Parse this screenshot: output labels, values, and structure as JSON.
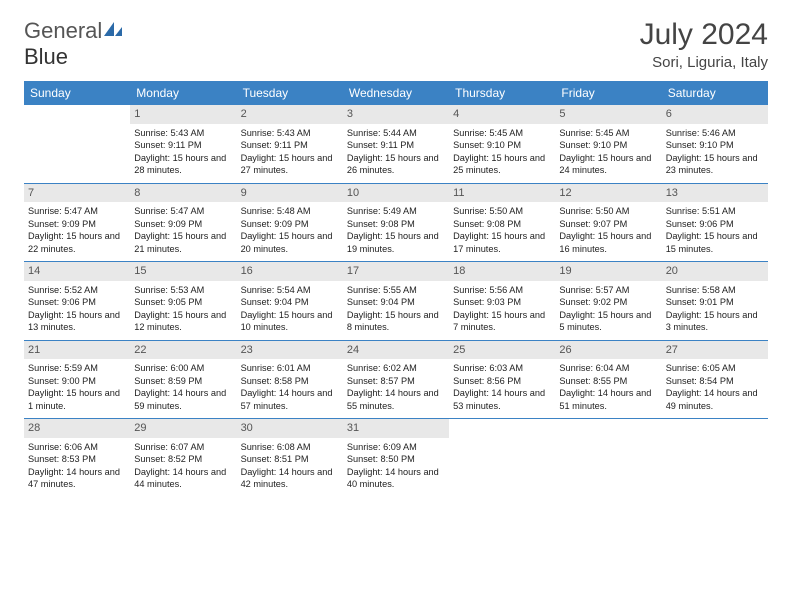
{
  "logo": {
    "text1": "General",
    "text2": "Blue"
  },
  "title": "July 2024",
  "location": "Sori, Liguria, Italy",
  "colors": {
    "header_bg": "#3b82c4",
    "header_text": "#ffffff",
    "daynum_bg": "#e8e8e8",
    "daynum_text": "#555555",
    "row_border": "#3b82c4",
    "body_text": "#222222",
    "title_text": "#444444"
  },
  "fonts": {
    "title_size": 30,
    "location_size": 15,
    "header_size": 12,
    "cell_size": 9.2
  },
  "day_headers": [
    "Sunday",
    "Monday",
    "Tuesday",
    "Wednesday",
    "Thursday",
    "Friday",
    "Saturday"
  ],
  "weeks": [
    [
      {
        "n": "",
        "sunrise": "",
        "sunset": "",
        "daylight": ""
      },
      {
        "n": "1",
        "sunrise": "Sunrise: 5:43 AM",
        "sunset": "Sunset: 9:11 PM",
        "daylight": "Daylight: 15 hours and 28 minutes."
      },
      {
        "n": "2",
        "sunrise": "Sunrise: 5:43 AM",
        "sunset": "Sunset: 9:11 PM",
        "daylight": "Daylight: 15 hours and 27 minutes."
      },
      {
        "n": "3",
        "sunrise": "Sunrise: 5:44 AM",
        "sunset": "Sunset: 9:11 PM",
        "daylight": "Daylight: 15 hours and 26 minutes."
      },
      {
        "n": "4",
        "sunrise": "Sunrise: 5:45 AM",
        "sunset": "Sunset: 9:10 PM",
        "daylight": "Daylight: 15 hours and 25 minutes."
      },
      {
        "n": "5",
        "sunrise": "Sunrise: 5:45 AM",
        "sunset": "Sunset: 9:10 PM",
        "daylight": "Daylight: 15 hours and 24 minutes."
      },
      {
        "n": "6",
        "sunrise": "Sunrise: 5:46 AM",
        "sunset": "Sunset: 9:10 PM",
        "daylight": "Daylight: 15 hours and 23 minutes."
      }
    ],
    [
      {
        "n": "7",
        "sunrise": "Sunrise: 5:47 AM",
        "sunset": "Sunset: 9:09 PM",
        "daylight": "Daylight: 15 hours and 22 minutes."
      },
      {
        "n": "8",
        "sunrise": "Sunrise: 5:47 AM",
        "sunset": "Sunset: 9:09 PM",
        "daylight": "Daylight: 15 hours and 21 minutes."
      },
      {
        "n": "9",
        "sunrise": "Sunrise: 5:48 AM",
        "sunset": "Sunset: 9:09 PM",
        "daylight": "Daylight: 15 hours and 20 minutes."
      },
      {
        "n": "10",
        "sunrise": "Sunrise: 5:49 AM",
        "sunset": "Sunset: 9:08 PM",
        "daylight": "Daylight: 15 hours and 19 minutes."
      },
      {
        "n": "11",
        "sunrise": "Sunrise: 5:50 AM",
        "sunset": "Sunset: 9:08 PM",
        "daylight": "Daylight: 15 hours and 17 minutes."
      },
      {
        "n": "12",
        "sunrise": "Sunrise: 5:50 AM",
        "sunset": "Sunset: 9:07 PM",
        "daylight": "Daylight: 15 hours and 16 minutes."
      },
      {
        "n": "13",
        "sunrise": "Sunrise: 5:51 AM",
        "sunset": "Sunset: 9:06 PM",
        "daylight": "Daylight: 15 hours and 15 minutes."
      }
    ],
    [
      {
        "n": "14",
        "sunrise": "Sunrise: 5:52 AM",
        "sunset": "Sunset: 9:06 PM",
        "daylight": "Daylight: 15 hours and 13 minutes."
      },
      {
        "n": "15",
        "sunrise": "Sunrise: 5:53 AM",
        "sunset": "Sunset: 9:05 PM",
        "daylight": "Daylight: 15 hours and 12 minutes."
      },
      {
        "n": "16",
        "sunrise": "Sunrise: 5:54 AM",
        "sunset": "Sunset: 9:04 PM",
        "daylight": "Daylight: 15 hours and 10 minutes."
      },
      {
        "n": "17",
        "sunrise": "Sunrise: 5:55 AM",
        "sunset": "Sunset: 9:04 PM",
        "daylight": "Daylight: 15 hours and 8 minutes."
      },
      {
        "n": "18",
        "sunrise": "Sunrise: 5:56 AM",
        "sunset": "Sunset: 9:03 PM",
        "daylight": "Daylight: 15 hours and 7 minutes."
      },
      {
        "n": "19",
        "sunrise": "Sunrise: 5:57 AM",
        "sunset": "Sunset: 9:02 PM",
        "daylight": "Daylight: 15 hours and 5 minutes."
      },
      {
        "n": "20",
        "sunrise": "Sunrise: 5:58 AM",
        "sunset": "Sunset: 9:01 PM",
        "daylight": "Daylight: 15 hours and 3 minutes."
      }
    ],
    [
      {
        "n": "21",
        "sunrise": "Sunrise: 5:59 AM",
        "sunset": "Sunset: 9:00 PM",
        "daylight": "Daylight: 15 hours and 1 minute."
      },
      {
        "n": "22",
        "sunrise": "Sunrise: 6:00 AM",
        "sunset": "Sunset: 8:59 PM",
        "daylight": "Daylight: 14 hours and 59 minutes."
      },
      {
        "n": "23",
        "sunrise": "Sunrise: 6:01 AM",
        "sunset": "Sunset: 8:58 PM",
        "daylight": "Daylight: 14 hours and 57 minutes."
      },
      {
        "n": "24",
        "sunrise": "Sunrise: 6:02 AM",
        "sunset": "Sunset: 8:57 PM",
        "daylight": "Daylight: 14 hours and 55 minutes."
      },
      {
        "n": "25",
        "sunrise": "Sunrise: 6:03 AM",
        "sunset": "Sunset: 8:56 PM",
        "daylight": "Daylight: 14 hours and 53 minutes."
      },
      {
        "n": "26",
        "sunrise": "Sunrise: 6:04 AM",
        "sunset": "Sunset: 8:55 PM",
        "daylight": "Daylight: 14 hours and 51 minutes."
      },
      {
        "n": "27",
        "sunrise": "Sunrise: 6:05 AM",
        "sunset": "Sunset: 8:54 PM",
        "daylight": "Daylight: 14 hours and 49 minutes."
      }
    ],
    [
      {
        "n": "28",
        "sunrise": "Sunrise: 6:06 AM",
        "sunset": "Sunset: 8:53 PM",
        "daylight": "Daylight: 14 hours and 47 minutes."
      },
      {
        "n": "29",
        "sunrise": "Sunrise: 6:07 AM",
        "sunset": "Sunset: 8:52 PM",
        "daylight": "Daylight: 14 hours and 44 minutes."
      },
      {
        "n": "30",
        "sunrise": "Sunrise: 6:08 AM",
        "sunset": "Sunset: 8:51 PM",
        "daylight": "Daylight: 14 hours and 42 minutes."
      },
      {
        "n": "31",
        "sunrise": "Sunrise: 6:09 AM",
        "sunset": "Sunset: 8:50 PM",
        "daylight": "Daylight: 14 hours and 40 minutes."
      },
      {
        "n": "",
        "sunrise": "",
        "sunset": "",
        "daylight": ""
      },
      {
        "n": "",
        "sunrise": "",
        "sunset": "",
        "daylight": ""
      },
      {
        "n": "",
        "sunrise": "",
        "sunset": "",
        "daylight": ""
      }
    ]
  ]
}
